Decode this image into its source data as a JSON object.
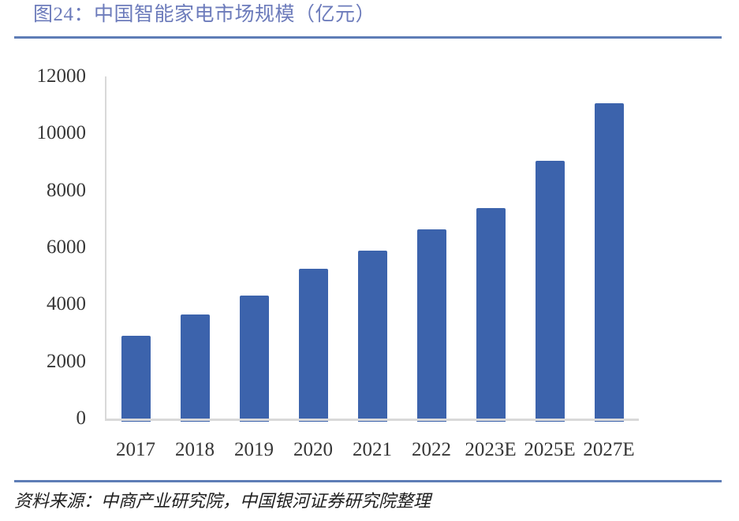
{
  "header": {
    "title": "图24：中国智能家电市场规模（亿元）"
  },
  "footer": {
    "source": "资料来源：中商产业研究院，中国银河证券研究院整理"
  },
  "colors": {
    "bar": "#3C63AC",
    "title_text": "#6C7BBB",
    "divider": "#5E7DB6",
    "axis_line": "#D9D9D9",
    "tick_text": "#363636"
  },
  "chart_data": {
    "type": "bar",
    "figure_label": "图24",
    "title": "中国智能家电市场规模（亿元）",
    "unit": "亿元",
    "categories": [
      "2017",
      "2018",
      "2019",
      "2020",
      "2021",
      "2022",
      "2023E",
      "2025E",
      "2027E"
    ],
    "values": [
      2900,
      3660,
      4320,
      5250,
      5890,
      6630,
      7380,
      9050,
      11070
    ],
    "xlabel": "",
    "ylabel": "",
    "ylim": [
      0,
      12000
    ],
    "ytick_interval": 2000,
    "yticks": [
      12000,
      10000,
      8000,
      6000,
      4000,
      2000,
      0
    ],
    "grid": false,
    "legend_position": "none",
    "bar_color": "#3C63AC"
  }
}
